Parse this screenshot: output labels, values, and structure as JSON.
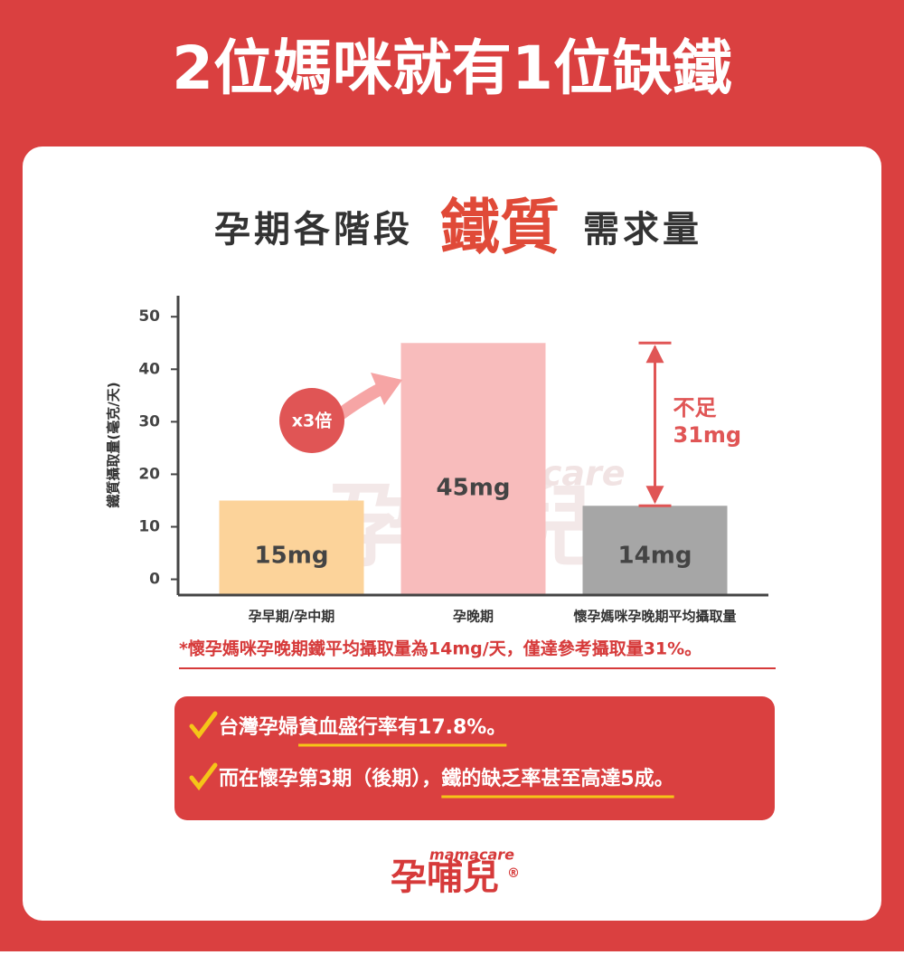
{
  "header": {
    "title": "2位媽咪就有1位缺鐵"
  },
  "chart_data": {
    "type": "bar",
    "title_prefix": "孕期各階段",
    "title_highlight": "鐵質",
    "title_suffix": "需求量",
    "y_label": "鐵質攝取量(毫克/天)",
    "categories": [
      "孕早期/孕中期",
      "孕晚期",
      "懷孕媽咪孕晚期平均攝取量"
    ],
    "values": [
      15,
      45,
      14
    ],
    "value_labels": [
      "15mg",
      "45mg",
      "14mg"
    ],
    "colors": [
      "#fcd39a",
      "#f8bcbc",
      "#a6a6a6"
    ],
    "ylim": [
      -3,
      54
    ],
    "yticks": [
      0,
      10,
      20,
      30,
      40,
      50
    ],
    "multiplier_label": "x3倍",
    "gap_label": [
      "不足",
      "31mg"
    ],
    "watermark": [
      "mamacare",
      "孕哺兒"
    ]
  },
  "footnote": "*懷孕媽咪孕晚期鐵平均攝取量為14mg/天，僅達參考攝取量31%。",
  "facts": [
    [
      "台灣孕婦",
      "貧血盛行率有17.8%。"
    ],
    [
      "而在懷孕第3期（後期），",
      "鐵的缺乏率甚至高達5成。"
    ]
  ],
  "logo": {
    "tagline": "mamacare",
    "name": "孕哺兒",
    "mark": "®"
  }
}
